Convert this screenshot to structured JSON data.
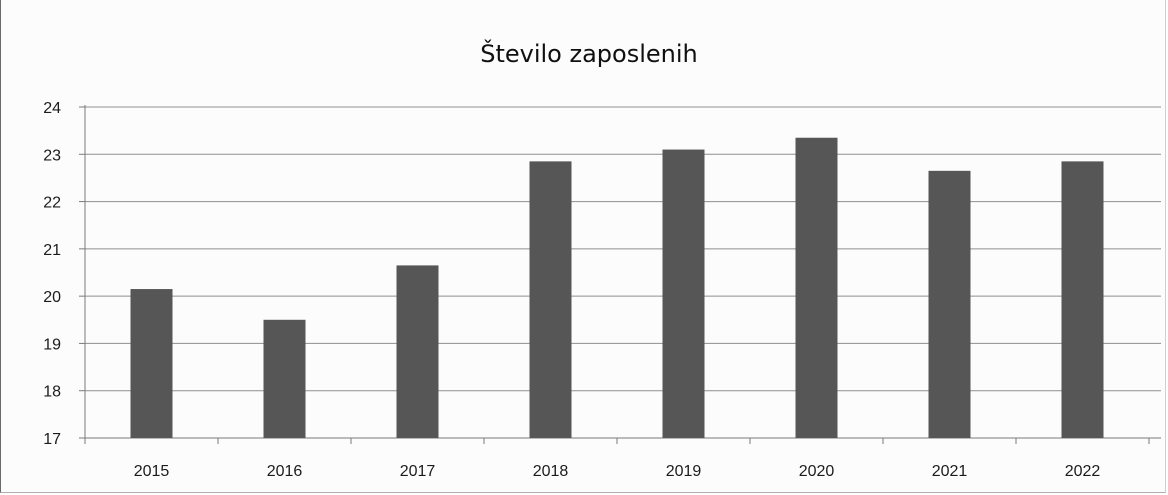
{
  "chart_data": {
    "type": "bar",
    "title": "Število zaposlenih",
    "xlabel": "",
    "ylabel": "",
    "categories": [
      "2015",
      "2016",
      "2017",
      "2018",
      "2019",
      "2020",
      "2021",
      "2022"
    ],
    "values": [
      20.15,
      19.5,
      20.65,
      22.85,
      23.1,
      23.35,
      22.65,
      22.85
    ],
    "ylim": [
      17,
      24
    ],
    "yticks": [
      "17",
      "18",
      "19",
      "20",
      "21",
      "22",
      "23",
      "24"
    ],
    "grid": true,
    "legend": "none",
    "colors": {
      "bar": "#565656",
      "grid": "#8f8f8f",
      "axis": "#7a7a7a"
    }
  }
}
